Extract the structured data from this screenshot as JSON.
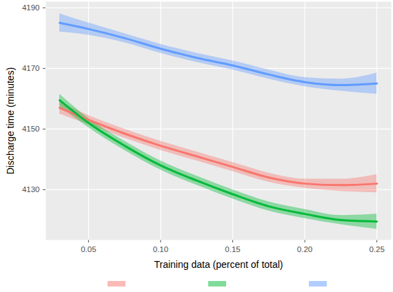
{
  "chart_data": {
    "type": "line",
    "x_label": "Training data (percent of total)",
    "y_label": "Discharge time (minutes)",
    "x": [
      0.03,
      0.05,
      0.075,
      0.1,
      0.125,
      0.15,
      0.175,
      0.2,
      0.225,
      0.25
    ],
    "series": [
      {
        "color": "#F8766D",
        "values": [
          4157,
          4153,
          4148.5,
          4144.5,
          4141,
          4137.5,
          4134,
          4132,
          4131.5,
          4132
        ],
        "lower": [
          4155,
          4151.5,
          4147,
          4143,
          4139.5,
          4136,
          4132.5,
          4130.5,
          4129.5,
          4129
        ],
        "upper": [
          4159,
          4154.5,
          4150,
          4146,
          4142.5,
          4139,
          4135.5,
          4133.5,
          4133.5,
          4135
        ]
      },
      {
        "color": "#00BA38",
        "values": [
          4159.5,
          4152,
          4144.5,
          4138,
          4133,
          4128.5,
          4124.5,
          4122,
          4120,
          4119.5
        ],
        "lower": [
          4157.5,
          4150.5,
          4143,
          4136.5,
          4131.5,
          4127,
          4123,
          4120.5,
          4118.5,
          4117
        ],
        "upper": [
          4161.5,
          4153.5,
          4146,
          4139.5,
          4134.5,
          4130,
          4126,
          4123.5,
          4121.5,
          4122
        ]
      },
      {
        "color": "#619CFF",
        "values": [
          4185,
          4183,
          4180,
          4176.5,
          4173.5,
          4171,
          4168,
          4165.5,
          4164.5,
          4165
        ],
        "lower": [
          4182,
          4181,
          4178.5,
          4175,
          4172,
          4169.5,
          4166.5,
          4164,
          4162.5,
          4161.5
        ],
        "upper": [
          4188,
          4185,
          4181.5,
          4178,
          4175,
          4172.5,
          4169.5,
          4167,
          4166.5,
          4168.5
        ]
      }
    ],
    "xlim": [
      0.0204,
      0.26
    ],
    "ylim": [
      4113.4,
      4192
    ],
    "xticks": [
      0.05,
      {
        "value": 0.1,
        "label": "0.10"
      },
      0.15,
      {
        "value": 0.2,
        "label": "0.20"
      },
      0.25
    ],
    "yticks": [
      4130,
      4150,
      4170,
      4190
    ],
    "grid": true,
    "legend": "bottom"
  }
}
